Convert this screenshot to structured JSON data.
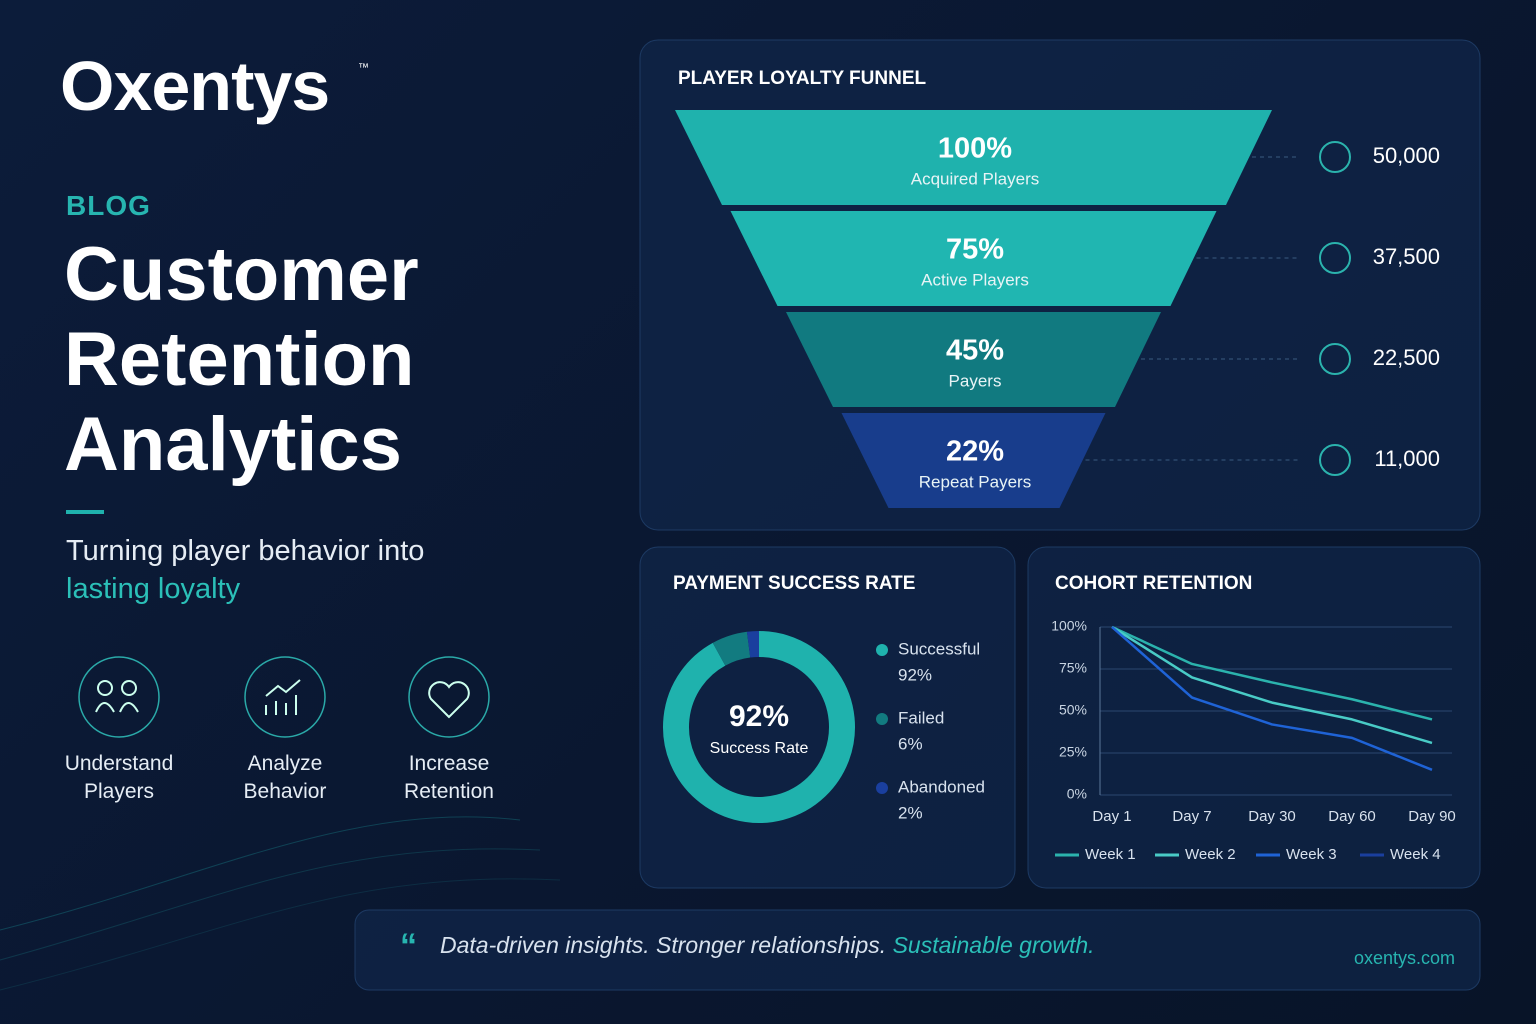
{
  "brand": "Oxentys",
  "trademark": "™",
  "kicker": "BLOG",
  "headline": "Customer Retention Analytics",
  "subtitle": {
    "text": "Turning player behavior into",
    "highlight": "lasting loyalty"
  },
  "features": [
    "Understand Players",
    "Analyze Behavior",
    "Increase Retention"
  ],
  "quote": {
    "text": "Data-driven insights. Stronger relationships.",
    "highlight": "Sustainable growth."
  },
  "url": "oxentys.com",
  "chart_data": [
    {
      "type": "funnel",
      "title": "PLAYER LOYALTY FUNNEL",
      "categories": [
        "Acquired Players",
        "Active Players",
        "Payers",
        "Repeat Payers"
      ],
      "values": [
        100,
        75,
        45,
        22
      ],
      "value_labels": [
        "100%",
        "75%",
        "45%",
        "22%"
      ],
      "counts": [
        50000,
        37500,
        22500,
        11000
      ],
      "count_labels": [
        "50,000",
        "37,500",
        "22,500",
        "11,000"
      ],
      "colors": [
        "#1fb2ad",
        "#20b6b1",
        "#117a80",
        "#183d8c"
      ]
    },
    {
      "type": "donut",
      "title": "PAYMENT SUCCESS RATE",
      "categories": [
        "Successful",
        "Failed",
        "Abandoned"
      ],
      "values": [
        92,
        6,
        2
      ],
      "value_labels": [
        "92%",
        "6%",
        "2%"
      ],
      "colors": [
        "#1fb2ad",
        "#127b80",
        "#1a3f9e"
      ],
      "center_label": "Success Rate"
    },
    {
      "type": "line",
      "title": "COHORT RETENTION",
      "categories": [
        "Day 1",
        "Day 7",
        "Day 30",
        "Day 60",
        "Day 90"
      ],
      "series": [
        {
          "name": "Week 1",
          "color": "#2bb3ad",
          "values": [
            100,
            78,
            67,
            57,
            45
          ]
        },
        {
          "name": "Week 2",
          "color": "#49cbc6",
          "values": [
            100,
            70,
            55,
            45,
            31
          ]
        },
        {
          "name": "Week 3",
          "color": "#1f63d6",
          "values": [
            100,
            58,
            42,
            34,
            15
          ]
        },
        {
          "name": "Week 4",
          "color": "#1a3f9e",
          "values": [
            null,
            null,
            null,
            null,
            null
          ]
        }
      ],
      "ylim": [
        0,
        100
      ],
      "yticks": [
        {
          "value": 0,
          "label": "0%"
        },
        {
          "value": 25,
          "label": "25%"
        },
        {
          "value": 50,
          "label": "50%"
        },
        {
          "value": 75,
          "label": "75%"
        },
        {
          "value": 100,
          "label": "100%"
        }
      ],
      "grid": true
    }
  ]
}
